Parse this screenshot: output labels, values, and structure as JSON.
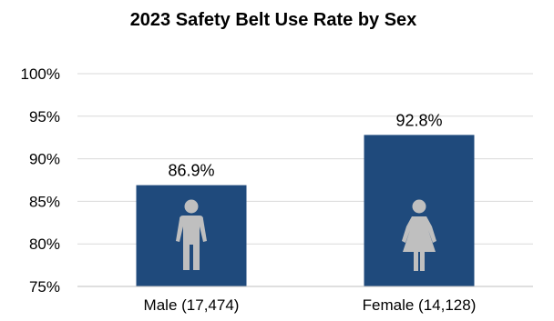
{
  "chart_data": {
    "type": "bar",
    "title": "2023 Safety Belt Use Rate by Sex",
    "categories": [
      "Male (17,474)",
      "Female (14,128)"
    ],
    "values": [
      86.9,
      92.8
    ],
    "value_labels": [
      "86.9%",
      "92.8%"
    ],
    "icons": [
      "male-person-icon",
      "female-person-icon"
    ],
    "ylim": [
      75,
      100
    ],
    "yticks": [
      75,
      80,
      85,
      90,
      95,
      100
    ],
    "ytick_labels": [
      "75%",
      "80%",
      "85%",
      "90%",
      "95%",
      "100%"
    ],
    "xlabel": "",
    "ylabel": "",
    "grid": true,
    "legend": "none",
    "colors": {
      "bar": "#1f4a7c",
      "icon": "#bfbfbf",
      "grid": "#d9d9d9"
    }
  }
}
